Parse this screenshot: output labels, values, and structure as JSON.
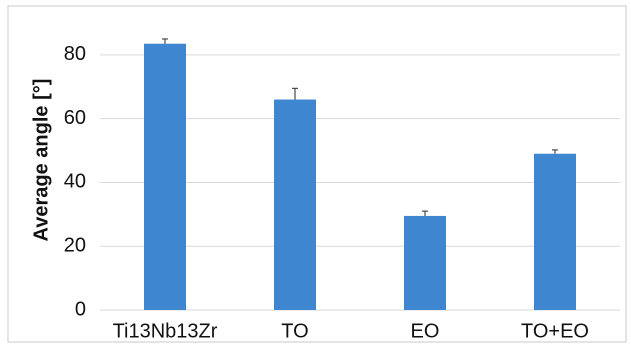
{
  "chart_data": {
    "type": "bar",
    "title": "",
    "xlabel": "",
    "ylabel": "Average angle [°]",
    "categories": [
      "Ti13Nb13Zr",
      "TO",
      "EO",
      "TO+EO"
    ],
    "values": [
      83.5,
      66,
      29.5,
      49
    ],
    "error": [
      1.5,
      3.5,
      1.5,
      1.2
    ],
    "ylim": [
      0,
      90
    ],
    "yticks": [
      0,
      20,
      40,
      60,
      80
    ],
    "grid": true,
    "legend": "none",
    "colors": {
      "bar": "#3f86d0",
      "error_bar": "#4a4a4a",
      "grid": "#d9d9d9",
      "frame": "#c8c8c8"
    }
  }
}
